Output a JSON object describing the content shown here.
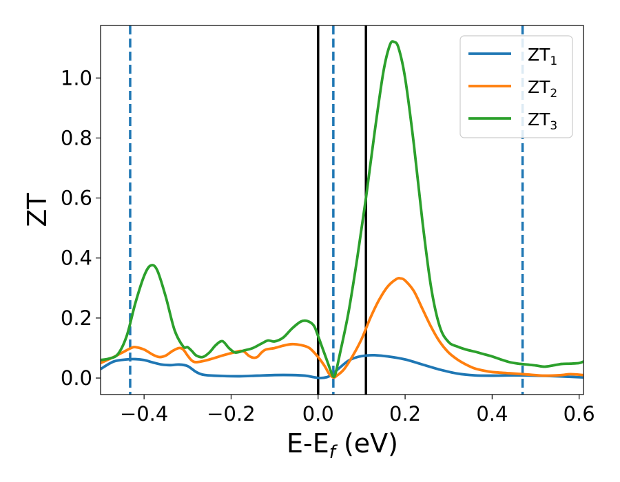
{
  "chart_data": {
    "type": "line",
    "xlabel": "E-E",
    "xlabel_sub": "f",
    "xlabel_unit": " (eV)",
    "ylabel": "ZT",
    "xlim": [
      -0.5,
      0.61
    ],
    "ylim": [
      -0.055,
      1.175
    ],
    "xticks": [
      -0.4,
      -0.2,
      0.0,
      0.2,
      0.4,
      0.6
    ],
    "xtick_labels": [
      "−0.4",
      "−0.2",
      "0.0",
      "0.2",
      "0.4",
      "0.6"
    ],
    "yticks": [
      0.0,
      0.2,
      0.4,
      0.6,
      0.8,
      1.0
    ],
    "ytick_labels": [
      "0.0",
      "0.2",
      "0.4",
      "0.6",
      "0.8",
      "1.0"
    ],
    "grid": false,
    "legend_position": "top-right",
    "vlines_dashed": {
      "color": "#1f77b4",
      "x": [
        -0.432,
        0.035,
        0.47
      ]
    },
    "vlines_solid": {
      "color": "#000000",
      "x": [
        0.0,
        0.11
      ]
    },
    "series": [
      {
        "name": "ZT",
        "name_sub": "1",
        "color": "#1f77b4",
        "points": [
          [
            -0.5,
            0.03
          ],
          [
            -0.47,
            0.055
          ],
          [
            -0.44,
            0.062
          ],
          [
            -0.42,
            0.063
          ],
          [
            -0.4,
            0.06
          ],
          [
            -0.38,
            0.052
          ],
          [
            -0.36,
            0.045
          ],
          [
            -0.34,
            0.043
          ],
          [
            -0.32,
            0.045
          ],
          [
            -0.3,
            0.04
          ],
          [
            -0.28,
            0.02
          ],
          [
            -0.26,
            0.01
          ],
          [
            -0.22,
            0.007
          ],
          [
            -0.18,
            0.006
          ],
          [
            -0.14,
            0.008
          ],
          [
            -0.1,
            0.01
          ],
          [
            -0.06,
            0.01
          ],
          [
            -0.03,
            0.008
          ],
          [
            -0.01,
            0.003
          ],
          [
            0.005,
            0.0
          ],
          [
            0.02,
            0.003
          ],
          [
            0.03,
            0.01
          ],
          [
            0.05,
            0.035
          ],
          [
            0.07,
            0.058
          ],
          [
            0.09,
            0.07
          ],
          [
            0.11,
            0.075
          ],
          [
            0.13,
            0.076
          ],
          [
            0.16,
            0.072
          ],
          [
            0.2,
            0.062
          ],
          [
            0.24,
            0.045
          ],
          [
            0.28,
            0.028
          ],
          [
            0.32,
            0.015
          ],
          [
            0.36,
            0.009
          ],
          [
            0.4,
            0.008
          ],
          [
            0.45,
            0.009
          ],
          [
            0.5,
            0.008
          ],
          [
            0.55,
            0.006
          ],
          [
            0.61,
            0.002
          ]
        ]
      },
      {
        "name": "ZT",
        "name_sub": "2",
        "color": "#ff7f0e",
        "points": [
          [
            -0.5,
            0.05
          ],
          [
            -0.47,
            0.07
          ],
          [
            -0.45,
            0.085
          ],
          [
            -0.43,
            0.1
          ],
          [
            -0.42,
            0.103
          ],
          [
            -0.4,
            0.095
          ],
          [
            -0.38,
            0.078
          ],
          [
            -0.365,
            0.07
          ],
          [
            -0.35,
            0.075
          ],
          [
            -0.335,
            0.09
          ],
          [
            -0.32,
            0.1
          ],
          [
            -0.31,
            0.095
          ],
          [
            -0.3,
            0.075
          ],
          [
            -0.29,
            0.058
          ],
          [
            -0.28,
            0.053
          ],
          [
            -0.26,
            0.058
          ],
          [
            -0.24,
            0.066
          ],
          [
            -0.22,
            0.075
          ],
          [
            -0.2,
            0.083
          ],
          [
            -0.18,
            0.09
          ],
          [
            -0.17,
            0.088
          ],
          [
            -0.16,
            0.075
          ],
          [
            -0.15,
            0.068
          ],
          [
            -0.14,
            0.07
          ],
          [
            -0.13,
            0.085
          ],
          [
            -0.12,
            0.095
          ],
          [
            -0.1,
            0.1
          ],
          [
            -0.08,
            0.108
          ],
          [
            -0.06,
            0.113
          ],
          [
            -0.04,
            0.11
          ],
          [
            -0.02,
            0.1
          ],
          [
            0.0,
            0.07
          ],
          [
            0.015,
            0.04
          ],
          [
            0.025,
            0.015
          ],
          [
            0.035,
            0.002
          ],
          [
            0.045,
            0.01
          ],
          [
            0.06,
            0.03
          ],
          [
            0.08,
            0.075
          ],
          [
            0.1,
            0.13
          ],
          [
            0.12,
            0.2
          ],
          [
            0.14,
            0.26
          ],
          [
            0.16,
            0.305
          ],
          [
            0.18,
            0.33
          ],
          [
            0.19,
            0.332
          ],
          [
            0.2,
            0.325
          ],
          [
            0.22,
            0.29
          ],
          [
            0.24,
            0.23
          ],
          [
            0.26,
            0.17
          ],
          [
            0.28,
            0.12
          ],
          [
            0.3,
            0.085
          ],
          [
            0.32,
            0.062
          ],
          [
            0.34,
            0.045
          ],
          [
            0.36,
            0.032
          ],
          [
            0.38,
            0.025
          ],
          [
            0.4,
            0.02
          ],
          [
            0.44,
            0.016
          ],
          [
            0.48,
            0.012
          ],
          [
            0.52,
            0.008
          ],
          [
            0.56,
            0.01
          ],
          [
            0.58,
            0.013
          ],
          [
            0.61,
            0.01
          ]
        ]
      },
      {
        "name": "ZT",
        "name_sub": "3",
        "color": "#2ca02c",
        "points": [
          [
            -0.5,
            0.06
          ],
          [
            -0.48,
            0.065
          ],
          [
            -0.46,
            0.08
          ],
          [
            -0.44,
            0.14
          ],
          [
            -0.42,
            0.25
          ],
          [
            -0.4,
            0.34
          ],
          [
            -0.385,
            0.375
          ],
          [
            -0.37,
            0.36
          ],
          [
            -0.35,
            0.27
          ],
          [
            -0.33,
            0.16
          ],
          [
            -0.31,
            0.105
          ],
          [
            -0.3,
            0.103
          ],
          [
            -0.29,
            0.09
          ],
          [
            -0.28,
            0.075
          ],
          [
            -0.265,
            0.07
          ],
          [
            -0.25,
            0.085
          ],
          [
            -0.235,
            0.11
          ],
          [
            -0.22,
            0.123
          ],
          [
            -0.205,
            0.1
          ],
          [
            -0.19,
            0.085
          ],
          [
            -0.17,
            0.092
          ],
          [
            -0.15,
            0.1
          ],
          [
            -0.13,
            0.115
          ],
          [
            -0.115,
            0.125
          ],
          [
            -0.1,
            0.122
          ],
          [
            -0.08,
            0.135
          ],
          [
            -0.06,
            0.165
          ],
          [
            -0.04,
            0.188
          ],
          [
            -0.025,
            0.19
          ],
          [
            -0.01,
            0.175
          ],
          [
            0.0,
            0.14
          ],
          [
            0.01,
            0.1
          ],
          [
            0.02,
            0.06
          ],
          [
            0.03,
            0.02
          ],
          [
            0.035,
            0.005
          ],
          [
            0.04,
            0.015
          ],
          [
            0.05,
            0.08
          ],
          [
            0.07,
            0.22
          ],
          [
            0.09,
            0.4
          ],
          [
            0.11,
            0.6
          ],
          [
            0.13,
            0.82
          ],
          [
            0.15,
            1.02
          ],
          [
            0.165,
            1.11
          ],
          [
            0.175,
            1.12
          ],
          [
            0.185,
            1.1
          ],
          [
            0.2,
            1.0
          ],
          [
            0.22,
            0.78
          ],
          [
            0.24,
            0.52
          ],
          [
            0.26,
            0.3
          ],
          [
            0.28,
            0.17
          ],
          [
            0.3,
            0.12
          ],
          [
            0.32,
            0.105
          ],
          [
            0.34,
            0.095
          ],
          [
            0.36,
            0.088
          ],
          [
            0.38,
            0.08
          ],
          [
            0.4,
            0.072
          ],
          [
            0.42,
            0.062
          ],
          [
            0.44,
            0.053
          ],
          [
            0.46,
            0.048
          ],
          [
            0.48,
            0.045
          ],
          [
            0.5,
            0.042
          ],
          [
            0.52,
            0.038
          ],
          [
            0.54,
            0.042
          ],
          [
            0.56,
            0.047
          ],
          [
            0.58,
            0.048
          ],
          [
            0.6,
            0.05
          ],
          [
            0.61,
            0.055
          ]
        ]
      }
    ]
  }
}
